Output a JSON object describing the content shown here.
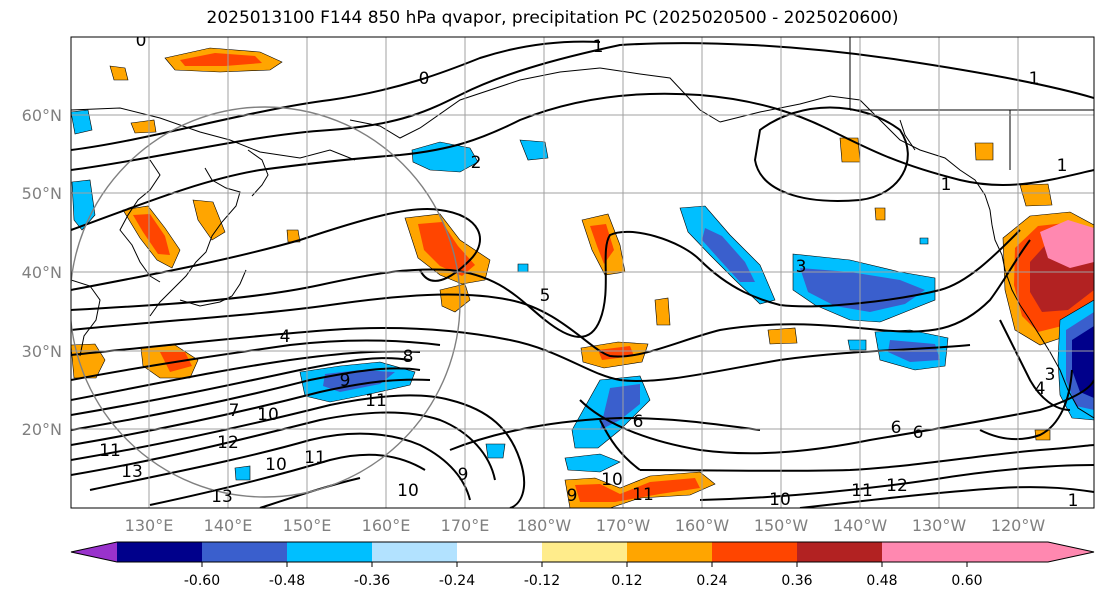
{
  "title": "2025013100 F144 850 hPa qvapor, precipitation PC (2025020500 - 2025020600)",
  "map": {
    "lat_labels": [
      "60°N",
      "50°N",
      "40°N",
      "30°N",
      "20°N"
    ],
    "lon_labels": [
      "130°E",
      "140°E",
      "150°E",
      "160°E",
      "170°E",
      "180°W",
      "170°W",
      "160°W",
      "150°W",
      "140°W",
      "130°W",
      "120°W"
    ],
    "contour_labels": [
      "0",
      "0",
      "1",
      "1",
      "1",
      "1",
      "2",
      "3",
      "3",
      "4",
      "5",
      "6",
      "6",
      "6",
      "7",
      "8",
      "9",
      "9",
      "9",
      "10",
      "10",
      "10",
      "10",
      "10",
      "11",
      "11",
      "11",
      "11",
      "11",
      "12",
      "12",
      "13",
      "13",
      "1",
      "4"
    ],
    "grid": true,
    "coastline_color": "#000000"
  },
  "colorbar": {
    "ticks": [
      "-0.60",
      "-0.48",
      "-0.36",
      "-0.24",
      "-0.12",
      "0.12",
      "0.24",
      "0.36",
      "0.48",
      "0.60"
    ],
    "colors": [
      "#9932cc",
      "#00008b",
      "#3a5fcd",
      "#00bfff",
      "#b2e2ff",
      "#ffffff",
      "#ffec8b",
      "#ffa500",
      "#ff4500",
      "#b22222",
      "#ff88b0"
    ]
  }
}
